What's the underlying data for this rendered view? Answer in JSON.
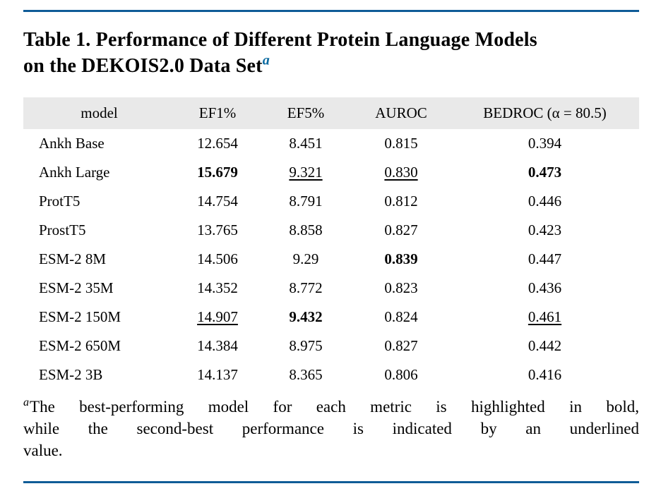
{
  "title": {
    "line1": "Table 1. Performance of Different Protein Language Models",
    "line2": "on the DEKOIS2.0 Data Set",
    "footnote_marker": "a"
  },
  "table": {
    "headers": [
      "model",
      "EF1%",
      "EF5%",
      "AUROC",
      "BEDROC (α = 80.5)"
    ],
    "rows": [
      {
        "cells": [
          "Ankh Base",
          "12.654",
          "8.451",
          "0.815",
          "0.394"
        ],
        "styles": [
          "",
          "",
          "",
          "",
          ""
        ]
      },
      {
        "cells": [
          "Ankh Large",
          "15.679",
          "9.321",
          "0.830",
          "0.473"
        ],
        "styles": [
          "",
          "bold",
          "underline",
          "underline",
          "bold"
        ]
      },
      {
        "cells": [
          "ProtT5",
          "14.754",
          "8.791",
          "0.812",
          "0.446"
        ],
        "styles": [
          "",
          "",
          "",
          "",
          ""
        ]
      },
      {
        "cells": [
          "ProstT5",
          "13.765",
          "8.858",
          "0.827",
          "0.423"
        ],
        "styles": [
          "",
          "",
          "",
          "",
          ""
        ]
      },
      {
        "cells": [
          "ESM-2 8M",
          "14.506",
          "9.29",
          "0.839",
          "0.447"
        ],
        "styles": [
          "",
          "",
          "",
          "bold",
          ""
        ]
      },
      {
        "cells": [
          "ESM-2 35M",
          "14.352",
          "8.772",
          "0.823",
          "0.436"
        ],
        "styles": [
          "",
          "",
          "",
          "",
          ""
        ]
      },
      {
        "cells": [
          "ESM-2 150M",
          "14.907",
          "9.432",
          "0.824",
          "0.461"
        ],
        "styles": [
          "",
          "underline",
          "bold",
          "",
          "underline"
        ]
      },
      {
        "cells": [
          "ESM-2 650M",
          "14.384",
          "8.975",
          "0.827",
          "0.442"
        ],
        "styles": [
          "",
          "",
          "",
          "",
          ""
        ]
      },
      {
        "cells": [
          "ESM-2 3B",
          "14.137",
          "8.365",
          "0.806",
          "0.416"
        ],
        "styles": [
          "",
          "",
          "",
          "",
          ""
        ]
      }
    ]
  },
  "footnote": {
    "marker": "a",
    "lines": [
      "The best-performing model for each metric is highlighted in bold,",
      "while the second-best performance is indicated by an underlined",
      "value."
    ]
  },
  "colors": {
    "rule_blue": "#0f5c97",
    "title_marker_blue": "#0b6aa0",
    "header_row_background": "#e9e9e9"
  }
}
